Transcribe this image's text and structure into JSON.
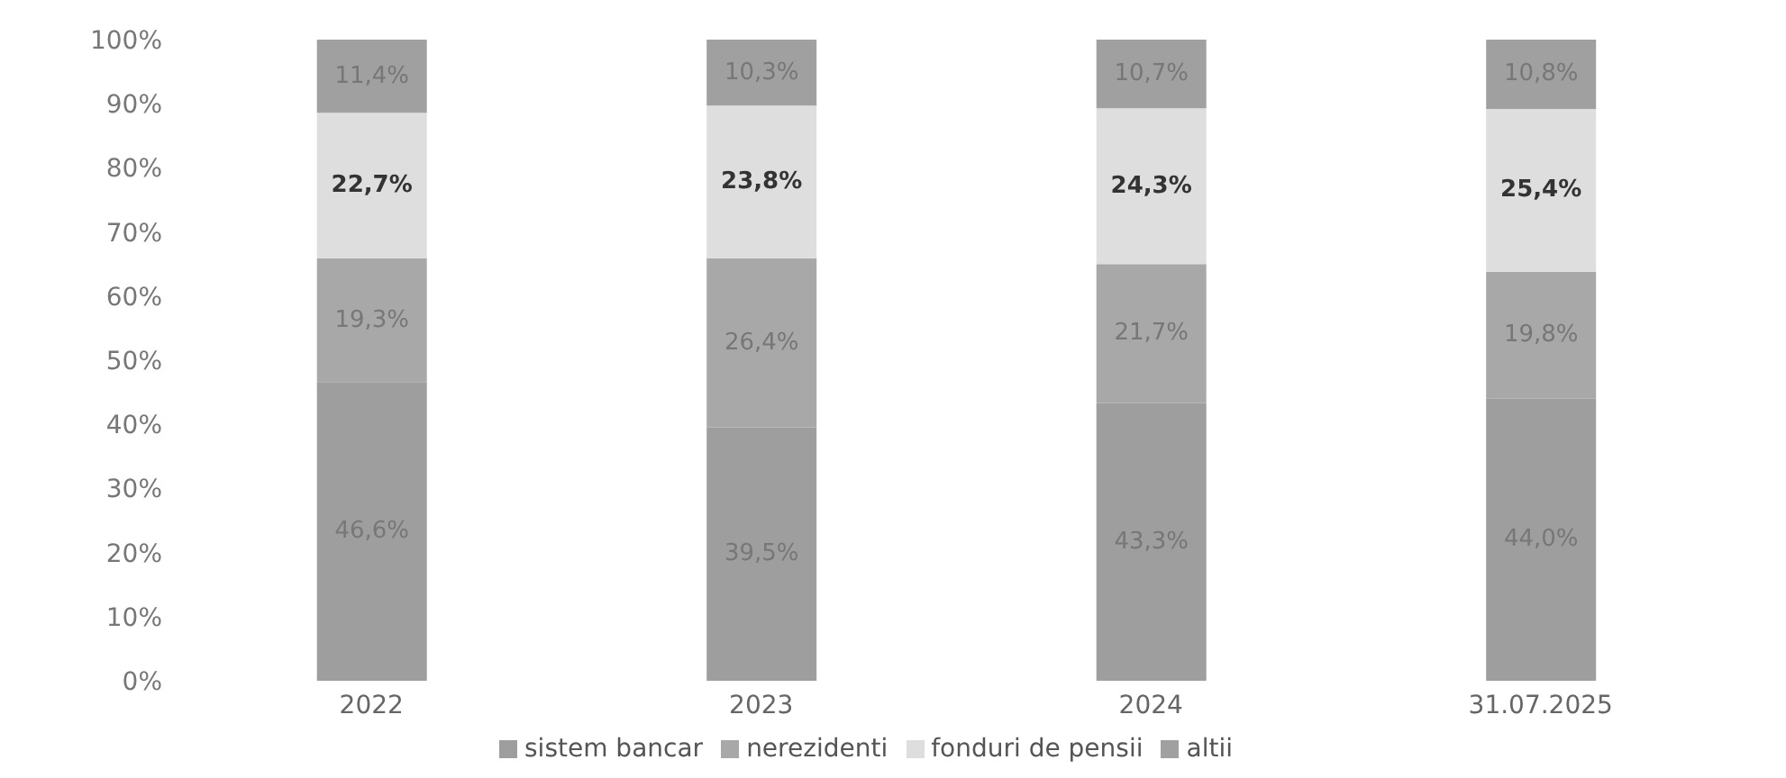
{
  "chart_data": {
    "type": "bar",
    "stacked": true,
    "categories": [
      "2022",
      "2023",
      "2024",
      "31.07.2025"
    ],
    "series": [
      {
        "name": "sistem bancar",
        "color": "#9e9e9e",
        "values": [
          46.6,
          39.5,
          43.3,
          44.0
        ],
        "value_labels": [
          "46,6%",
          "39,5%",
          "43,3%",
          "44,0%"
        ]
      },
      {
        "name": "nerezidenti",
        "color": "#a8a8a8",
        "values": [
          19.3,
          26.4,
          21.7,
          19.8
        ],
        "value_labels": [
          "19,3%",
          "26,4%",
          "21,7%",
          "19,8%"
        ]
      },
      {
        "name": "fonduri de pensii",
        "color": "#dedede",
        "values": [
          22.7,
          23.8,
          24.3,
          25.4
        ],
        "value_labels": [
          "22,7%",
          "23,8%",
          "24,3%",
          "25,4%"
        ]
      },
      {
        "name": "altii",
        "color": "#a0a0a0",
        "values": [
          11.4,
          10.3,
          10.7,
          10.8
        ],
        "value_labels": [
          "11,4%",
          "10,3%",
          "10,7%",
          "10,8%"
        ]
      }
    ],
    "ylim": [
      0,
      100
    ],
    "yticks": [
      {
        "value": 0,
        "label": "0%"
      },
      {
        "value": 10,
        "label": "10%"
      },
      {
        "value": 20,
        "label": "20%"
      },
      {
        "value": 30,
        "label": "30%"
      },
      {
        "value": 40,
        "label": "40%"
      },
      {
        "value": 50,
        "label": "50%"
      },
      {
        "value": 60,
        "label": "60%"
      },
      {
        "value": 70,
        "label": "70%"
      },
      {
        "value": 80,
        "label": "80%"
      },
      {
        "value": 90,
        "label": "90%"
      },
      {
        "value": 100,
        "label": "100%"
      }
    ],
    "grid": false,
    "legend": "bottom"
  }
}
